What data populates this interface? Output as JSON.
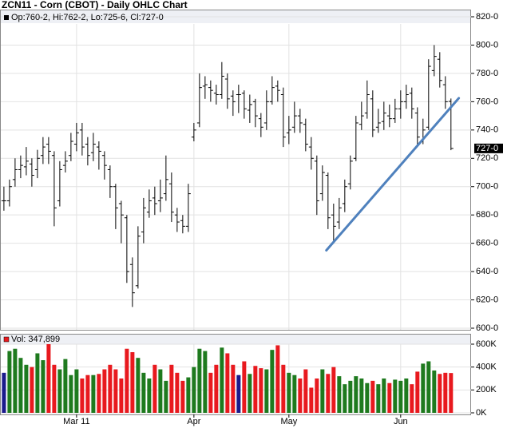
{
  "chart_data": [
    {
      "type": "ohlc",
      "title": "ZCN11 - Corn (CBOT) - Daily OHLC Chart",
      "legend": "Op:760-2, Hi:762-2, Lo:725-6, Cl:727-0",
      "last_label": "727-0",
      "color": "#000000",
      "grid": true,
      "open": [
        690,
        690,
        705,
        712,
        714,
        716,
        712,
        722,
        730,
        722,
        690,
        715,
        722,
        730,
        740,
        730,
        724,
        728,
        722,
        712,
        700,
        688,
        678,
        645,
        630,
        668,
        682,
        692,
        690,
        695,
        702,
        680,
        676,
        672,
        735,
        745,
        771,
        770,
        766,
        765,
        776,
        764,
        765,
        766,
        754,
        760,
        748,
        745,
        760,
        771,
        765,
        738,
        742,
        750,
        744,
        728,
        718,
        695,
        708,
        680,
        675,
        688,
        702,
        720,
        744,
        752,
        762,
        742,
        746,
        750,
        748,
        755,
        760,
        766,
        752,
        732,
        742,
        782,
        790,
        772,
        760.25
      ],
      "high": [
        700,
        705,
        720,
        722,
        728,
        720,
        726,
        735,
        735,
        725,
        718,
        725,
        738,
        745,
        745,
        735,
        738,
        732,
        725,
        715,
        702,
        690,
        680,
        650,
        672,
        692,
        698,
        700,
        705,
        722,
        710,
        685,
        680,
        702,
        745,
        780,
        778,
        775,
        772,
        788,
        780,
        768,
        772,
        768,
        765,
        762,
        752,
        768,
        778,
        775,
        770,
        750,
        760,
        755,
        748,
        735,
        722,
        715,
        710,
        688,
        692,
        705,
        722,
        750,
        760,
        775,
        768,
        755,
        760,
        758,
        762,
        768,
        772,
        770,
        756,
        748,
        790,
        800,
        795,
        778,
        762.25
      ],
      "low": [
        683,
        686,
        700,
        706,
        708,
        700,
        706,
        716,
        716,
        672,
        686,
        710,
        718,
        725,
        722,
        715,
        718,
        712,
        705,
        692,
        670,
        660,
        632,
        615,
        628,
        660,
        678,
        680,
        682,
        690,
        675,
        668,
        667,
        668,
        732,
        742,
        762,
        760,
        758,
        762,
        755,
        750,
        752,
        748,
        745,
        742,
        735,
        740,
        758,
        760,
        728,
        730,
        738,
        738,
        725,
        712,
        680,
        690,
        670,
        660,
        670,
        682,
        698,
        718,
        740,
        748,
        735,
        738,
        740,
        742,
        745,
        748,
        755,
        748,
        728,
        730,
        740,
        778,
        770,
        755,
        725.75
      ],
      "close": [
        690,
        700,
        712,
        715,
        718,
        708,
        720,
        728,
        725,
        685,
        712,
        718,
        732,
        738,
        728,
        722,
        730,
        725,
        715,
        700,
        685,
        680,
        640,
        625,
        665,
        685,
        690,
        688,
        692,
        705,
        682,
        675,
        672,
        695,
        740,
        770,
        772,
        768,
        765,
        778,
        762,
        760,
        765,
        755,
        758,
        750,
        742,
        760,
        770,
        768,
        735,
        740,
        750,
        745,
        730,
        720,
        690,
        710,
        678,
        672,
        685,
        700,
        718,
        745,
        750,
        765,
        740,
        745,
        752,
        748,
        755,
        760,
        765,
        755,
        735,
        740,
        785,
        792,
        775,
        760,
        727
      ],
      "ylim": [
        600,
        820
      ],
      "xlim": [
        -0.7,
        83.6
      ],
      "yticks": [
        {
          "value": 600,
          "label": "600-0"
        },
        {
          "value": 620,
          "label": "620-0"
        },
        {
          "value": 640,
          "label": "640-0"
        },
        {
          "value": 660,
          "label": "660-0"
        },
        {
          "value": 680,
          "label": "680-0"
        },
        {
          "value": 700,
          "label": "700-0"
        },
        {
          "value": 720,
          "label": "720-0"
        },
        {
          "value": 740,
          "label": "740-0"
        },
        {
          "value": 760,
          "label": "760-0"
        },
        {
          "value": 780,
          "label": "780-0"
        },
        {
          "value": 800,
          "label": "800-0"
        },
        {
          "value": 820,
          "label": "820-0"
        }
      ],
      "trendline": {
        "color": "#4f81bd",
        "x": [
          57.7,
          81.4
        ],
        "y": [
          655,
          762.5
        ]
      }
    },
    {
      "type": "volume",
      "legend": "Vol: 347,899",
      "up_color": "#1e7a1e",
      "down_color": "#e8191e",
      "flat_color": "#1a1a8c",
      "grid": true,
      "values": [
        350000,
        540000,
        560000,
        480000,
        420000,
        400000,
        520000,
        460000,
        600000,
        420000,
        380000,
        470000,
        330000,
        380000,
        300000,
        330000,
        330000,
        340000,
        380000,
        420000,
        380000,
        300000,
        560000,
        530000,
        480000,
        350000,
        300000,
        420000,
        380000,
        280000,
        420000,
        350000,
        280000,
        310000,
        400000,
        560000,
        540000,
        350000,
        420000,
        570000,
        520000,
        420000,
        330000,
        450000,
        340000,
        410000,
        390000,
        380000,
        550000,
        590000,
        420000,
        350000,
        330000,
        300000,
        380000,
        220000,
        300000,
        380000,
        340000,
        400000,
        320000,
        250000,
        280000,
        320000,
        300000,
        260000,
        280000,
        250000,
        300000,
        260000,
        290000,
        280000,
        300000,
        250000,
        360000,
        430000,
        450000,
        370000,
        340000,
        350000,
        347899
      ],
      "ylim": [
        0,
        600000
      ],
      "yticks": [
        {
          "value": 0,
          "label": "0K"
        },
        {
          "value": 200000,
          "label": "200K"
        },
        {
          "value": 400000,
          "label": "400K"
        },
        {
          "value": 600000,
          "label": "600K"
        }
      ],
      "xticks": [
        {
          "value": 13,
          "label": "Mar 11"
        },
        {
          "value": 34,
          "label": "Apr"
        },
        {
          "value": 51,
          "label": "May"
        },
        {
          "value": 71,
          "label": "Jun"
        }
      ]
    }
  ]
}
